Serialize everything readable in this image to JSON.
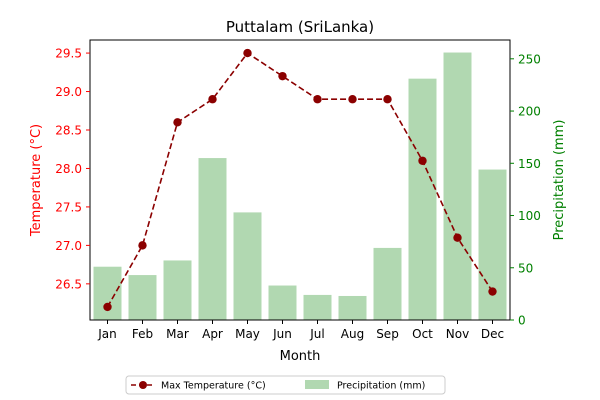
{
  "chart_data": {
    "type": "bar",
    "title": "Puttalam (SriLanka)",
    "xlabel": "Month",
    "categories": [
      "Jan",
      "Feb",
      "Mar",
      "Apr",
      "May",
      "Jun",
      "Jul",
      "Aug",
      "Sep",
      "Oct",
      "Nov",
      "Dec"
    ],
    "y_left": {
      "label": "Temperature (°C)",
      "range": [
        26.03,
        29.67
      ],
      "ticks": [
        26.5,
        27.0,
        27.5,
        28.0,
        28.5,
        29.0,
        29.5
      ],
      "tick_labels": [
        "26.5",
        "27.0",
        "27.5",
        "28.0",
        "28.5",
        "29.0",
        "29.5"
      ],
      "color": "#ff0000"
    },
    "y_right": {
      "label": "Precipitation (mm)",
      "range": [
        0,
        268
      ],
      "ticks": [
        0,
        50,
        100,
        150,
        200,
        250
      ],
      "tick_labels": [
        "0",
        "50",
        "100",
        "150",
        "200",
        "250"
      ],
      "color": "#008000"
    },
    "series": [
      {
        "name": "Max Temperature (°C)",
        "type": "line",
        "axis": "left",
        "style": "dashed with circle markers",
        "color": "#8b0000",
        "values": [
          26.2,
          27.0,
          28.6,
          28.9,
          29.5,
          29.2,
          28.9,
          28.9,
          28.9,
          28.1,
          27.1,
          26.4
        ]
      },
      {
        "name": "Precipitation (mm)",
        "type": "bar",
        "axis": "right",
        "color": "#b1d8b1",
        "values": [
          51,
          43,
          57,
          155,
          103,
          33,
          24,
          23,
          69,
          231,
          256,
          144
        ]
      }
    ],
    "legend": "bottom-center, outside plot",
    "grid": false
  }
}
